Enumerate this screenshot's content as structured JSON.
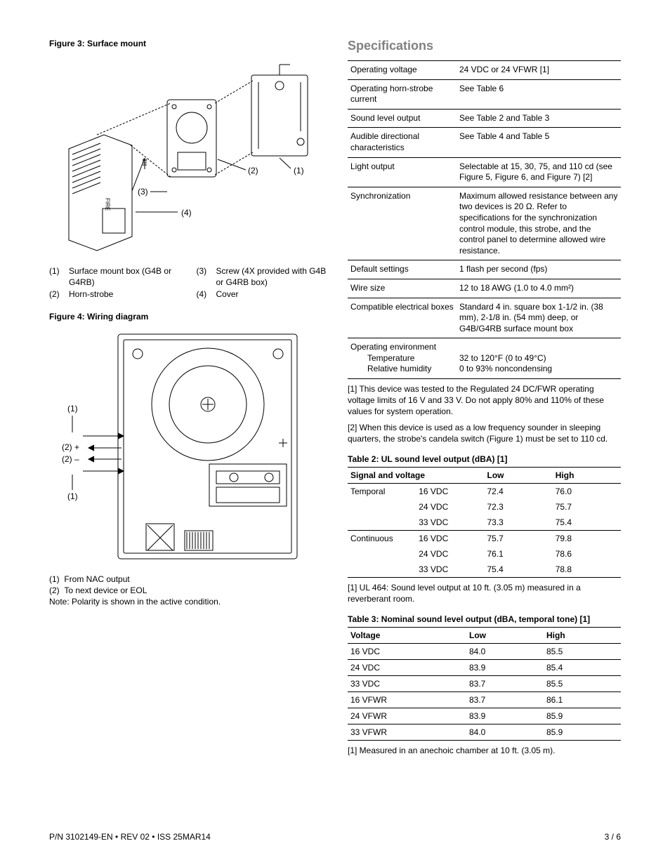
{
  "left": {
    "figure3": {
      "caption": "Figure 3: Surface mount",
      "callouts": [
        "(1)",
        "(2)",
        "(3)",
        "(4)"
      ],
      "legend": [
        {
          "num": "(1)",
          "text": "Surface mount box (G4B or G4RB)"
        },
        {
          "num": "(2)",
          "text": "Horn-strobe"
        },
        {
          "num": "(3)",
          "text": "Screw (4X provided with G4B or G4RB box)"
        },
        {
          "num": "(4)",
          "text": "Cover"
        }
      ]
    },
    "figure4": {
      "caption": "Figure 4: Wiring diagram",
      "callouts": [
        "(1)",
        "(2) +",
        "(2) –",
        "(1)"
      ],
      "legend": [
        {
          "num": "(1)",
          "text": "From NAC output"
        },
        {
          "num": "(2)",
          "text": "To next device or EOL"
        }
      ],
      "note": "Note: Polarity is shown in the active condition."
    }
  },
  "right": {
    "specifications_title": "Specifications",
    "spec_rows": [
      {
        "label": "Operating voltage",
        "value": "24 VDC or 24 VFWR [1]"
      },
      {
        "label": "Operating horn-strobe current",
        "value": "See Table 6"
      },
      {
        "label": "Sound level output",
        "value": "See Table 2 and Table 3"
      },
      {
        "label": "Audible directional characteristics",
        "value": "See Table 4 and Table 5"
      },
      {
        "label": "Light output",
        "value": "Selectable at 15, 30, 75, and 110 cd (see Figure 5, Figure 6, and Figure 7) [2]"
      },
      {
        "label": "Synchronization",
        "value": "Maximum allowed resistance between any two devices is 20 Ω. Refer to specifications for the synchronization control module, this strobe, and the control panel to determine allowed wire resistance."
      },
      {
        "label": "Default settings",
        "value": "1 flash per second (fps)"
      },
      {
        "label": "Wire size",
        "value": "12 to 18 AWG (1.0 to 4.0 mm²)"
      },
      {
        "label": "Compatible electrical boxes",
        "value": "Standard 4 in. square box 1-1/2 in. (38 mm), 2-1/8 in. (54 mm) deep, or G4B/G4RB surface mount box"
      }
    ],
    "env_label": "Operating environment",
    "env_rows": [
      {
        "sub": "Temperature",
        "value": "32 to 120°F (0 to 49°C)"
      },
      {
        "sub": "Relative humidity",
        "value": "0 to 93% noncondensing"
      }
    ],
    "spec_footnotes": [
      "[1] This device was tested to the Regulated 24 DC/FWR operating voltage limits of 16 V and 33 V. Do not apply 80% and 110% of these values for system operation.",
      "[2] When this device is used as a low frequency sounder in sleeping quarters, the strobe's candela switch (Figure 1) must be set to 110 cd."
    ],
    "table2": {
      "caption": "Table 2: UL sound level output (dBA) [1]",
      "headers": [
        "Signal and voltage",
        "",
        "Low",
        "High"
      ],
      "groups": [
        {
          "label": "Temporal",
          "rows": [
            [
              "16 VDC",
              "72.4",
              "76.0"
            ],
            [
              "24 VDC",
              "72.3",
              "75.7"
            ],
            [
              "33 VDC",
              "73.3",
              "75.4"
            ]
          ]
        },
        {
          "label": "Continuous",
          "rows": [
            [
              "16 VDC",
              "75.7",
              "79.8"
            ],
            [
              "24 VDC",
              "76.1",
              "78.6"
            ],
            [
              "33 VDC",
              "75.4",
              "78.8"
            ]
          ]
        }
      ],
      "footnote": "[1] UL 464: Sound level output at 10 ft. (3.05 m) measured in a reverberant room."
    },
    "table3": {
      "caption": "Table 3: Nominal sound level output (dBA, temporal tone) [1]",
      "headers": [
        "Voltage",
        "Low",
        "High"
      ],
      "rows": [
        [
          "16 VDC",
          "84.0",
          "85.5"
        ],
        [
          "24 VDC",
          "83.9",
          "85.4"
        ],
        [
          "33 VDC",
          "83.7",
          "85.5"
        ],
        [
          "16 VFWR",
          "83.7",
          "86.1"
        ],
        [
          "24 VFWR",
          "83.9",
          "85.9"
        ],
        [
          "33 VFWR",
          "84.0",
          "85.9"
        ]
      ],
      "footnote": "[1] Measured in an anechoic chamber at 10 ft. (3.05 m)."
    }
  },
  "footer": {
    "left": "P/N 3102149-EN • REV 02 • ISS 25MAR14",
    "right": "3 / 6"
  }
}
